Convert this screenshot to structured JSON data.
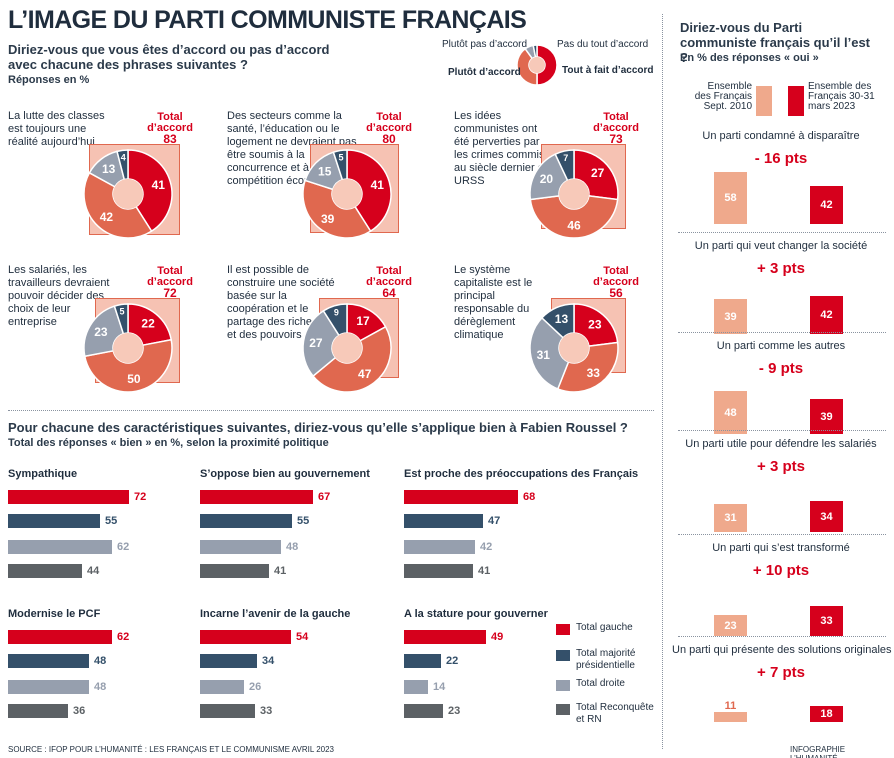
{
  "title": "L’IMAGE DU PARTI COMMUNISTE FRANÇAIS",
  "colors": {
    "red": "#d6001c",
    "salmon": "#e0684f",
    "navy": "#34506a",
    "grey": "#969fae",
    "dark_grey": "#5c6165",
    "light_salmon": "#f6c2b3",
    "orange_light": "#efa98c",
    "pie_center": "#f7c9b9"
  },
  "pies_section": {
    "question": "Diriez-vous que vous êtes d’accord ou pas d’accord avec chacune des phrases suivantes ?",
    "unit": "Réponses en %",
    "legend": {
      "plutot_pas": "Plutôt pas d’accord",
      "pas_du_tout": "Pas du tout d’accord",
      "plutot": "Plutôt d’accord",
      "tout_a_fait": "Tout à fait d’accord"
    },
    "total_label": "Total d’accord",
    "items": [
      {
        "statement": "La lutte des classes est toujours une réalité aujourd’hui",
        "total": "83"
      },
      {
        "statement": "Des secteurs comme la santé, l’éducation ou le logement ne devraient pas être soumis à la concurrence et à la compétition économique",
        "total": "80"
      },
      {
        "statement": "Les idées communistes ont été perverties par les crimes commis au siècle dernier en URSS",
        "total": "73"
      },
      {
        "statement": "Les salariés, les travailleurs devraient pouvoir décider des choix de leur entreprise",
        "total": "72"
      },
      {
        "statement": "Il est possible de construire une société basée sur la coopération et le partage des richesses et des pouvoirs",
        "total": "64"
      },
      {
        "statement": "Le système capitaliste est le principal responsable du dérèglement climatique",
        "total": "56"
      }
    ]
  },
  "bars_section": {
    "question": "Pour chacune des caractéristiques suivantes, diriez-vous qu’elle s’applique bien à Fabien Roussel ?",
    "unit": "Total des réponses « bien » en %, selon la proximité politique",
    "legend": [
      "Total gauche",
      "Total majorité présidentielle",
      "Total droite",
      "Total Reconquête et RN"
    ]
  },
  "right_section": {
    "title": "Diriez-vous du Parti communiste français qu’il l’est ?",
    "unit": "En % des réponses « oui »",
    "legend_2010": "Ensemble des Français Sept. 2010",
    "legend_2023": "Ensemble des Français 30-31 mars 2023"
  },
  "chart_data": [
    {
      "type": "pie",
      "title": "Diriez-vous que vous êtes d’accord ou pas d’accord avec chacune des phrases suivantes ?",
      "unit": "%",
      "slice_order": [
        "Tout à fait d’accord",
        "Plutôt d’accord",
        "Plutôt pas d’accord",
        "Pas du tout d’accord"
      ],
      "pies": [
        {
          "statement": "La lutte des classes est toujours une réalité aujourd’hui",
          "values": [
            41,
            42,
            13,
            4
          ],
          "total_accord": 83
        },
        {
          "statement": "Des secteurs comme la santé, l’éducation ou le logement ne devraient pas être soumis à la concurrence et à la compétition économique",
          "values": [
            41,
            39,
            15,
            5
          ],
          "total_accord": 80
        },
        {
          "statement": "Les idées communistes ont été perverties par les crimes commis au siècle dernier en URSS",
          "values": [
            27,
            46,
            20,
            7
          ],
          "total_accord": 73
        },
        {
          "statement": "Les salariés, les travailleurs devraient pouvoir décider des choix de leur entreprise",
          "values": [
            22,
            50,
            23,
            5
          ],
          "total_accord": 72
        },
        {
          "statement": "Il est possible de construire une société basée sur la coopération et le partage des richesses et des pouvoirs",
          "values": [
            17,
            47,
            27,
            9
          ],
          "total_accord": 64
        },
        {
          "statement": "Le système capitaliste est le principal responsable du dérèglement climatique",
          "values": [
            23,
            33,
            31,
            13
          ],
          "total_accord": 56
        }
      ]
    },
    {
      "type": "bar",
      "title": "Pour chacune des caractéristiques suivantes, diriez-vous qu’elle s’applique bien à Fabien Roussel ?",
      "subtitle": "Total des réponses « bien » en %, selon la proximité politique",
      "series_names": [
        "Total gauche",
        "Total majorité présidentielle",
        "Total droite",
        "Total Reconquête et RN"
      ],
      "groups": [
        {
          "name": "Sympathique",
          "values": [
            72,
            55,
            62,
            44
          ]
        },
        {
          "name": "S’oppose bien au gouvernement",
          "values": [
            67,
            55,
            48,
            41
          ]
        },
        {
          "name": "Est proche des préoccupations des Français",
          "values": [
            68,
            47,
            42,
            41
          ]
        },
        {
          "name": "Modernise le PCF",
          "values": [
            62,
            48,
            48,
            36
          ]
        },
        {
          "name": "Incarne l’avenir de la gauche",
          "values": [
            54,
            34,
            26,
            33
          ]
        },
        {
          "name": "A la stature pour gouverner",
          "values": [
            49,
            22,
            14,
            23
          ]
        }
      ]
    },
    {
      "type": "bar",
      "title": "Diriez-vous du Parti communiste français qu’il l’est ?",
      "subtitle": "En % des réponses « oui »",
      "series_names": [
        "Ensemble des Français Sept. 2010",
        "Ensemble des Français 30-31 mars 2023"
      ],
      "rows": [
        {
          "question": "Un parti condamné à disparaître",
          "values": [
            58,
            42
          ],
          "diff": "- 16 pts"
        },
        {
          "question": "Un parti qui veut changer la société",
          "values": [
            39,
            42
          ],
          "diff": "+ 3 pts"
        },
        {
          "question": "Un parti comme les autres",
          "values": [
            48,
            39
          ],
          "diff": "- 9 pts"
        },
        {
          "question": "Un parti utile pour défendre les salariés",
          "values": [
            31,
            34
          ],
          "diff": "+ 3 pts"
        },
        {
          "question": "Un parti qui s’est transformé",
          "values": [
            23,
            33
          ],
          "diff": "+ 10 pts"
        },
        {
          "question": "Un parti qui présente des solutions originales",
          "values": [
            11,
            18
          ],
          "diff": "+ 7 pts"
        }
      ]
    }
  ],
  "footer": {
    "source": "SOURCE : IFOP POUR L’HUMANITÉ : LES FRANÇAIS ET LE COMMUNISME AVRIL 2023",
    "credit": "INFOGRAPHIE L’HUMANITÉ"
  }
}
